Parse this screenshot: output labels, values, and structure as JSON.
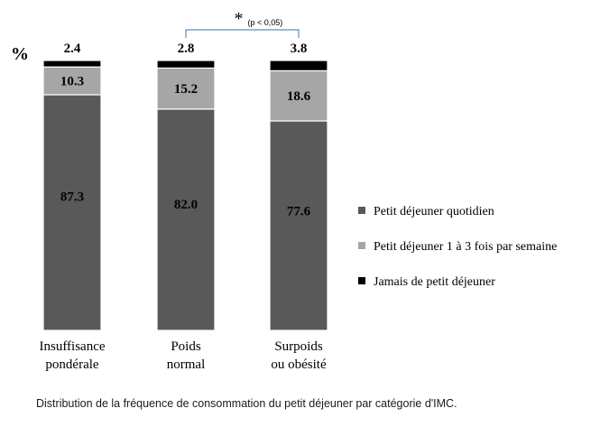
{
  "chart_data": {
    "type": "bar",
    "stacked": true,
    "ylabel": "%",
    "ylim": [
      0,
      100
    ],
    "grid": false,
    "legend_position": "right",
    "categories": [
      [
        "Insuffisance",
        "pondérale"
      ],
      [
        "Poids",
        "normal"
      ],
      [
        "Surpoids",
        "ou obésité"
      ]
    ],
    "series": [
      {
        "name": "Petit déjeuner quotidien",
        "color": "#595959",
        "values": [
          87.3,
          82.0,
          77.6
        ],
        "labels": [
          "87.3",
          "82.0",
          "77.6"
        ]
      },
      {
        "name": "Petit déjeuner 1 à 3 fois par semaine",
        "color": "#a6a6a6",
        "values": [
          10.3,
          15.2,
          18.6
        ],
        "labels": [
          "10.3",
          "15.2",
          "18.6"
        ]
      },
      {
        "name": "Jamais de petit déjeuner",
        "color": "#000000",
        "values": [
          2.4,
          2.8,
          3.8
        ],
        "labels": [
          "2.4",
          "2.8",
          "3.8"
        ]
      }
    ],
    "annotation": {
      "symbol": "*",
      "text": "(p < 0,05)",
      "between": [
        1,
        2
      ]
    }
  },
  "caption": "Distribution de la fréquence de consommation du petit déjeuner par catégorie d'IMC."
}
